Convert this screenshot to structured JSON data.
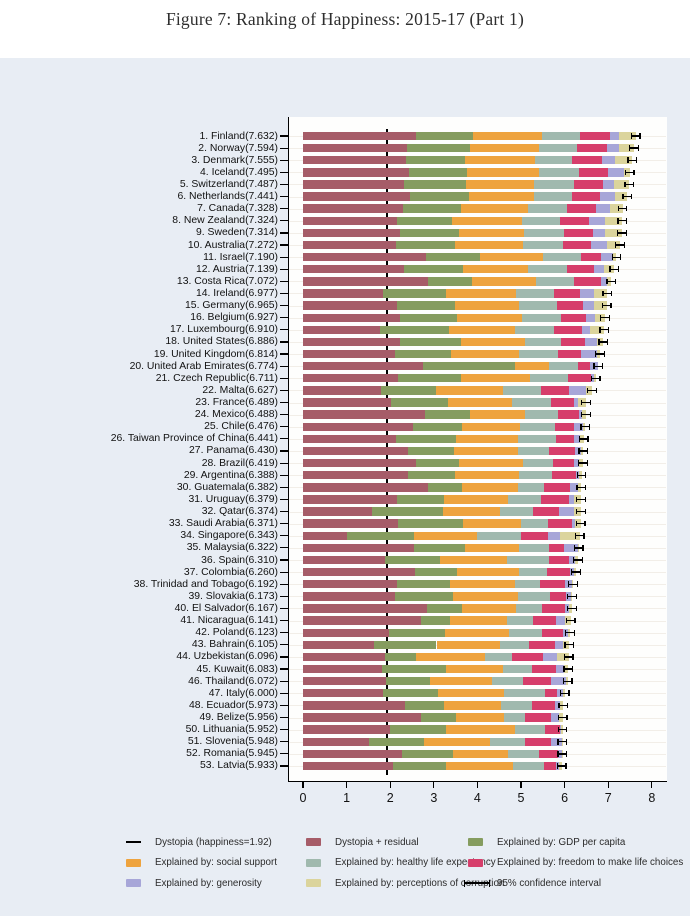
{
  "title": "Figure 7: Ranking of Happiness: 2015-17 (Part 1)",
  "chart_data": {
    "type": "bar",
    "orientation": "horizontal",
    "stacked": true,
    "title": "Figure 7: Ranking of Happiness: 2015-17 (Part 1)",
    "xlabel": "",
    "ylabel": "",
    "xlim": [
      0,
      8
    ],
    "x_ticks": [
      0,
      1,
      2,
      3,
      4,
      5,
      6,
      7,
      8
    ],
    "grid": false,
    "dystopia_reference_value": 1.92,
    "ci_halfwidth": 0.1,
    "label_format": "{rank}. {name}({score})",
    "segment_order": [
      "dystopia_residual",
      "gdp_per_capita",
      "social_support",
      "healthy_life_expectancy",
      "freedom",
      "generosity",
      "corruption"
    ],
    "colors": {
      "dystopia_residual": "#a65c68",
      "gdp_per_capita": "#859c5f",
      "social_support": "#eea33e",
      "healthy_life_expectancy": "#a0b9ae",
      "freedom": "#d63e6b",
      "generosity": "#a7a6d8",
      "corruption": "#dbd49c",
      "ci": "#000000",
      "panel_bg": "#e8edf4",
      "plot_bg": "#fefefd"
    },
    "countries": [
      {
        "rank": 1,
        "name": "Finland",
        "score": 7.632,
        "gdp_per_capita": 1.305,
        "social_support": 1.592,
        "healthy_life_expectancy": 0.874,
        "freedom": 0.681,
        "generosity": 0.202,
        "corruption": 0.393
      },
      {
        "rank": 2,
        "name": "Norway",
        "score": 7.594,
        "gdp_per_capita": 1.456,
        "social_support": 1.582,
        "healthy_life_expectancy": 0.861,
        "freedom": 0.686,
        "generosity": 0.286,
        "corruption": 0.34
      },
      {
        "rank": 3,
        "name": "Denmark",
        "score": 7.555,
        "gdp_per_capita": 1.351,
        "social_support": 1.59,
        "healthy_life_expectancy": 0.868,
        "freedom": 0.683,
        "generosity": 0.284,
        "corruption": 0.408
      },
      {
        "rank": 4,
        "name": "Iceland",
        "score": 7.495,
        "gdp_per_capita": 1.343,
        "social_support": 1.644,
        "healthy_life_expectancy": 0.914,
        "freedom": 0.677,
        "generosity": 0.353,
        "corruption": 0.138
      },
      {
        "rank": 5,
        "name": "Switzerland",
        "score": 7.487,
        "gdp_per_capita": 1.42,
        "social_support": 1.549,
        "healthy_life_expectancy": 0.927,
        "freedom": 0.66,
        "generosity": 0.256,
        "corruption": 0.357
      },
      {
        "rank": 6,
        "name": "Netherlands",
        "score": 7.441,
        "gdp_per_capita": 1.361,
        "social_support": 1.488,
        "healthy_life_expectancy": 0.878,
        "freedom": 0.638,
        "generosity": 0.333,
        "corruption": 0.295
      },
      {
        "rank": 7,
        "name": "Canada",
        "score": 7.328,
        "gdp_per_capita": 1.33,
        "social_support": 1.532,
        "healthy_life_expectancy": 0.896,
        "freedom": 0.653,
        "generosity": 0.321,
        "corruption": 0.291
      },
      {
        "rank": 8,
        "name": "New Zealand",
        "score": 7.324,
        "gdp_per_capita": 1.268,
        "social_support": 1.601,
        "healthy_life_expectancy": 0.876,
        "freedom": 0.669,
        "generosity": 0.365,
        "corruption": 0.389
      },
      {
        "rank": 9,
        "name": "Sweden",
        "score": 7.314,
        "gdp_per_capita": 1.355,
        "social_support": 1.501,
        "healthy_life_expectancy": 0.913,
        "freedom": 0.659,
        "generosity": 0.285,
        "corruption": 0.383
      },
      {
        "rank": 10,
        "name": "Australia",
        "score": 7.272,
        "gdp_per_capita": 1.34,
        "social_support": 1.573,
        "healthy_life_expectancy": 0.91,
        "freedom": 0.647,
        "generosity": 0.361,
        "corruption": 0.302
      },
      {
        "rank": 11,
        "name": "Israel",
        "score": 7.19,
        "gdp_per_capita": 1.244,
        "social_support": 1.433,
        "healthy_life_expectancy": 0.888,
        "freedom": 0.464,
        "generosity": 0.262,
        "corruption": 0.082
      },
      {
        "rank": 12,
        "name": "Austria",
        "score": 7.139,
        "gdp_per_capita": 1.341,
        "social_support": 1.504,
        "healthy_life_expectancy": 0.891,
        "freedom": 0.617,
        "generosity": 0.242,
        "corruption": 0.224
      },
      {
        "rank": 13,
        "name": "Costa Rica",
        "score": 7.072,
        "gdp_per_capita": 0.996,
        "social_support": 1.461,
        "healthy_life_expectancy": 0.876,
        "freedom": 0.624,
        "generosity": 0.137,
        "corruption": 0.101
      },
      {
        "rank": 14,
        "name": "Ireland",
        "score": 6.977,
        "gdp_per_capita": 1.448,
        "social_support": 1.583,
        "healthy_life_expectancy": 0.876,
        "freedom": 0.614,
        "generosity": 0.307,
        "corruption": 0.306
      },
      {
        "rank": 15,
        "name": "Germany",
        "score": 6.965,
        "gdp_per_capita": 1.34,
        "social_support": 1.474,
        "healthy_life_expectancy": 0.861,
        "freedom": 0.586,
        "generosity": 0.273,
        "corruption": 0.28
      },
      {
        "rank": 16,
        "name": "Belgium",
        "score": 6.927,
        "gdp_per_capita": 1.324,
        "social_support": 1.483,
        "healthy_life_expectancy": 0.894,
        "freedom": 0.583,
        "generosity": 0.188,
        "corruption": 0.24
      },
      {
        "rank": 17,
        "name": "Luxembourg",
        "score": 6.91,
        "gdp_per_capita": 1.576,
        "social_support": 1.52,
        "healthy_life_expectancy": 0.896,
        "freedom": 0.632,
        "generosity": 0.196,
        "corruption": 0.321
      },
      {
        "rank": 18,
        "name": "United States",
        "score": 6.886,
        "gdp_per_capita": 1.398,
        "social_support": 1.471,
        "healthy_life_expectancy": 0.819,
        "freedom": 0.547,
        "generosity": 0.291,
        "corruption": 0.133
      },
      {
        "rank": 19,
        "name": "United Kingdom",
        "score": 6.814,
        "gdp_per_capita": 1.301,
        "social_support": 1.559,
        "healthy_life_expectancy": 0.883,
        "freedom": 0.533,
        "generosity": 0.354,
        "corruption": 0.082
      },
      {
        "rank": 20,
        "name": "United Arab Emirates",
        "score": 6.774,
        "gdp_per_capita": 2.096,
        "social_support": 0.776,
        "healthy_life_expectancy": 0.67,
        "freedom": 0.284,
        "generosity": 0.186,
        "corruption": 0.0
      },
      {
        "rank": 21,
        "name": "Czech Republic",
        "score": 6.711,
        "gdp_per_capita": 1.433,
        "social_support": 1.598,
        "healthy_life_expectancy": 0.854,
        "freedom": 0.543,
        "generosity": 0.064,
        "corruption": 0.034
      },
      {
        "rank": 22,
        "name": "Malta",
        "score": 6.627,
        "gdp_per_capita": 1.27,
        "social_support": 1.525,
        "healthy_life_expectancy": 0.884,
        "freedom": 0.645,
        "generosity": 0.376,
        "corruption": 0.142
      },
      {
        "rank": 23,
        "name": "France",
        "score": 6.489,
        "gdp_per_capita": 1.293,
        "social_support": 1.466,
        "healthy_life_expectancy": 0.908,
        "freedom": 0.52,
        "generosity": 0.098,
        "corruption": 0.176
      },
      {
        "rank": 24,
        "name": "Mexico",
        "score": 6.488,
        "gdp_per_capita": 1.038,
        "social_support": 1.252,
        "healthy_life_expectancy": 0.761,
        "freedom": 0.479,
        "generosity": 0.069,
        "corruption": 0.095
      },
      {
        "rank": 25,
        "name": "Chile",
        "score": 6.476,
        "gdp_per_capita": 1.131,
        "social_support": 1.331,
        "healthy_life_expectancy": 0.808,
        "freedom": 0.431,
        "generosity": 0.197,
        "corruption": 0.061
      },
      {
        "rank": 26,
        "name": "Taiwan Province of China",
        "score": 6.441,
        "gdp_per_capita": 1.365,
        "social_support": 1.436,
        "healthy_life_expectancy": 0.857,
        "freedom": 0.418,
        "generosity": 0.151,
        "corruption": 0.078
      },
      {
        "rank": 27,
        "name": "Panama",
        "score": 6.43,
        "gdp_per_capita": 1.072,
        "social_support": 1.463,
        "healthy_life_expectancy": 0.71,
        "freedom": 0.596,
        "generosity": 0.125,
        "corruption": 0.063
      },
      {
        "rank": 28,
        "name": "Brazil",
        "score": 6.419,
        "gdp_per_capita": 0.986,
        "social_support": 1.474,
        "healthy_life_expectancy": 0.675,
        "freedom": 0.493,
        "generosity": 0.11,
        "corruption": 0.088
      },
      {
        "rank": 29,
        "name": "Argentina",
        "score": 6.388,
        "gdp_per_capita": 1.073,
        "social_support": 1.468,
        "healthy_life_expectancy": 0.744,
        "freedom": 0.57,
        "generosity": 0.062,
        "corruption": 0.054
      },
      {
        "rank": 30,
        "name": "Guatemala",
        "score": 6.382,
        "gdp_per_capita": 0.781,
        "social_support": 1.269,
        "healthy_life_expectancy": 0.608,
        "freedom": 0.604,
        "generosity": 0.179,
        "corruption": 0.071
      },
      {
        "rank": 31,
        "name": "Uruguay",
        "score": 6.379,
        "gdp_per_capita": 1.093,
        "social_support": 1.459,
        "healthy_life_expectancy": 0.771,
        "freedom": 0.625,
        "generosity": 0.13,
        "corruption": 0.155
      },
      {
        "rank": 32,
        "name": "Qatar",
        "score": 6.374,
        "gdp_per_capita": 1.649,
        "social_support": 1.303,
        "healthy_life_expectancy": 0.748,
        "freedom": 0.604,
        "generosity": 0.33,
        "corruption": 0.167
      },
      {
        "rank": 33,
        "name": "Saudi Arabia",
        "score": 6.371,
        "gdp_per_capita": 1.503,
        "social_support": 1.312,
        "healthy_life_expectancy": 0.63,
        "freedom": 0.539,
        "generosity": 0.08,
        "corruption": 0.132
      },
      {
        "rank": 34,
        "name": "Singapore",
        "score": 6.343,
        "gdp_per_capita": 1.529,
        "social_support": 1.451,
        "healthy_life_expectancy": 1.008,
        "freedom": 0.631,
        "generosity": 0.261,
        "corruption": 0.457
      },
      {
        "rank": 35,
        "name": "Malaysia",
        "score": 6.322,
        "gdp_per_capita": 1.161,
        "social_support": 1.258,
        "healthy_life_expectancy": 0.669,
        "freedom": 0.356,
        "generosity": 0.31,
        "corruption": 0.024
      },
      {
        "rank": 36,
        "name": "Spain",
        "score": 6.31,
        "gdp_per_capita": 1.251,
        "social_support": 1.538,
        "healthy_life_expectancy": 0.965,
        "freedom": 0.449,
        "generosity": 0.142,
        "corruption": 0.074
      },
      {
        "rank": 37,
        "name": "Colombia",
        "score": 6.26,
        "gdp_per_capita": 0.96,
        "social_support": 1.439,
        "healthy_life_expectancy": 0.635,
        "freedom": 0.531,
        "generosity": 0.099,
        "corruption": 0.034
      },
      {
        "rank": 38,
        "name": "Trinidad and Tobago",
        "score": 6.192,
        "gdp_per_capita": 1.223,
        "social_support": 1.492,
        "healthy_life_expectancy": 0.564,
        "freedom": 0.575,
        "generosity": 0.171,
        "corruption": 0.019
      },
      {
        "rank": 39,
        "name": "Slovakia",
        "score": 6.173,
        "gdp_per_capita": 1.325,
        "social_support": 1.505,
        "healthy_life_expectancy": 0.712,
        "freedom": 0.37,
        "generosity": 0.123,
        "corruption": 0.026
      },
      {
        "rank": 40,
        "name": "El Salvador",
        "score": 6.167,
        "gdp_per_capita": 0.794,
        "social_support": 1.242,
        "healthy_life_expectancy": 0.596,
        "freedom": 0.526,
        "generosity": 0.093,
        "corruption": 0.074
      },
      {
        "rank": 41,
        "name": "Nicaragua",
        "score": 6.141,
        "gdp_per_capita": 0.668,
        "social_support": 1.3,
        "healthy_life_expectancy": 0.615,
        "freedom": 0.519,
        "generosity": 0.208,
        "corruption": 0.128
      },
      {
        "rank": 42,
        "name": "Poland",
        "score": 6.123,
        "gdp_per_capita": 1.291,
        "social_support": 1.464,
        "healthy_life_expectancy": 0.753,
        "freedom": 0.483,
        "generosity": 0.117,
        "corruption": 0.05
      },
      {
        "rank": 43,
        "name": "Bahrain",
        "score": 6.105,
        "gdp_per_capita": 1.443,
        "social_support": 1.459,
        "healthy_life_expectancy": 0.654,
        "freedom": 0.615,
        "generosity": 0.172,
        "corruption": 0.143
      },
      {
        "rank": 44,
        "name": "Uzbekistan",
        "score": 6.096,
        "gdp_per_capita": 0.719,
        "social_support": 1.584,
        "healthy_life_expectancy": 0.605,
        "freedom": 0.724,
        "generosity": 0.328,
        "corruption": 0.259
      },
      {
        "rank": 45,
        "name": "Kuwait",
        "score": 6.083,
        "gdp_per_capita": 1.474,
        "social_support": 1.301,
        "healthy_life_expectancy": 0.675,
        "freedom": 0.554,
        "generosity": 0.167,
        "corruption": 0.106
      },
      {
        "rank": 46,
        "name": "Thailand",
        "score": 6.072,
        "gdp_per_capita": 1.016,
        "social_support": 1.417,
        "healthy_life_expectancy": 0.707,
        "freedom": 0.637,
        "generosity": 0.364,
        "corruption": 0.029
      },
      {
        "rank": 47,
        "name": "Italy",
        "score": 6.0,
        "gdp_per_capita": 1.264,
        "social_support": 1.501,
        "healthy_life_expectancy": 0.946,
        "freedom": 0.281,
        "generosity": 0.137,
        "corruption": 0.028
      },
      {
        "rank": 48,
        "name": "Ecuador",
        "score": 5.973,
        "gdp_per_capita": 0.896,
        "social_support": 1.318,
        "healthy_life_expectancy": 0.695,
        "freedom": 0.532,
        "generosity": 0.115,
        "corruption": 0.083
      },
      {
        "rank": 49,
        "name": "Belize",
        "score": 5.956,
        "gdp_per_capita": 0.807,
        "social_support": 1.101,
        "healthy_life_expectancy": 0.474,
        "freedom": 0.593,
        "generosity": 0.183,
        "corruption": 0.089
      },
      {
        "rank": 50,
        "name": "Lithuania",
        "score": 5.952,
        "gdp_per_capita": 1.283,
        "social_support": 1.583,
        "healthy_life_expectancy": 0.693,
        "freedom": 0.343,
        "generosity": 0.036,
        "corruption": 0.028
      },
      {
        "rank": 51,
        "name": "Slovenia",
        "score": 5.948,
        "gdp_per_capita": 1.258,
        "social_support": 1.523,
        "healthy_life_expectancy": 0.791,
        "freedom": 0.604,
        "generosity": 0.242,
        "corruption": 0.016
      },
      {
        "rank": 52,
        "name": "Romania",
        "score": 5.945,
        "gdp_per_capita": 1.177,
        "social_support": 1.257,
        "healthy_life_expectancy": 0.71,
        "freedom": 0.439,
        "generosity": 0.083,
        "corruption": 0.005
      },
      {
        "rank": 53,
        "name": "Latvia",
        "score": 5.933,
        "gdp_per_capita": 1.233,
        "social_support": 1.528,
        "healthy_life_expectancy": 0.713,
        "freedom": 0.264,
        "generosity": 0.075,
        "corruption": 0.064
      }
    ]
  },
  "legend": {
    "position": "bottom",
    "items": [
      {
        "swatch": "line",
        "label": "Dystopia (happiness=1.92)"
      },
      {
        "swatch": "dystopia_residual",
        "label": "Dystopia + residual"
      },
      {
        "swatch": "gdp_per_capita",
        "label": "Explained by: GDP per capita"
      },
      {
        "swatch": "social_support",
        "label": "Explained by: social support"
      },
      {
        "swatch": "healthy_life_expectancy",
        "label": "Explained by: healthy life expectancy"
      },
      {
        "swatch": "freedom",
        "label": "Explained by: freedom to make life choices"
      },
      {
        "swatch": "generosity",
        "label": "Explained by: generosity"
      },
      {
        "swatch": "corruption",
        "label": "Explained by: perceptions of corruption"
      },
      {
        "swatch": "whisker",
        "label": "95% confidence interval"
      }
    ]
  }
}
